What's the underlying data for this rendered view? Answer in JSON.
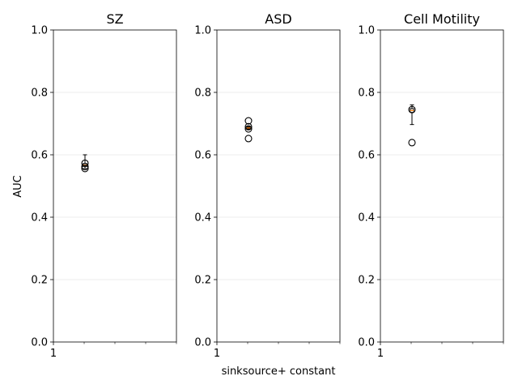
{
  "chart_data": {
    "type": "box",
    "ylabel": "AUC",
    "xlabel": "sinksource+ constant",
    "ylim": [
      0,
      1
    ],
    "y_ticks": [
      "0.0",
      "0.2",
      "0.4",
      "0.6",
      "0.8",
      "1.0"
    ],
    "x_tick_label": "1",
    "grid": "horizontal",
    "panels": [
      {
        "title": "SZ",
        "box": {
          "q1": 0.563,
          "median": 0.567,
          "q3": 0.572,
          "whisker_low": 0.556,
          "whisker_high": 0.6
        },
        "outliers": [
          0.556,
          0.562,
          0.573
        ]
      },
      {
        "title": "ASD",
        "box": {
          "q1": 0.684,
          "median": 0.686,
          "q3": 0.688,
          "whisker_low": 0.682,
          "whisker_high": 0.69
        },
        "outliers": [
          0.709,
          0.69,
          0.683,
          0.652
        ]
      },
      {
        "title": "Cell Motility",
        "box": {
          "q1": 0.736,
          "median": 0.742,
          "q3": 0.748,
          "whisker_low": 0.697,
          "whisker_high": 0.76
        },
        "outliers": [
          0.745,
          0.639
        ]
      }
    ],
    "colors": {
      "box": "#000000",
      "median": "#ff7f0e",
      "grid": "#e6e6e6"
    }
  }
}
